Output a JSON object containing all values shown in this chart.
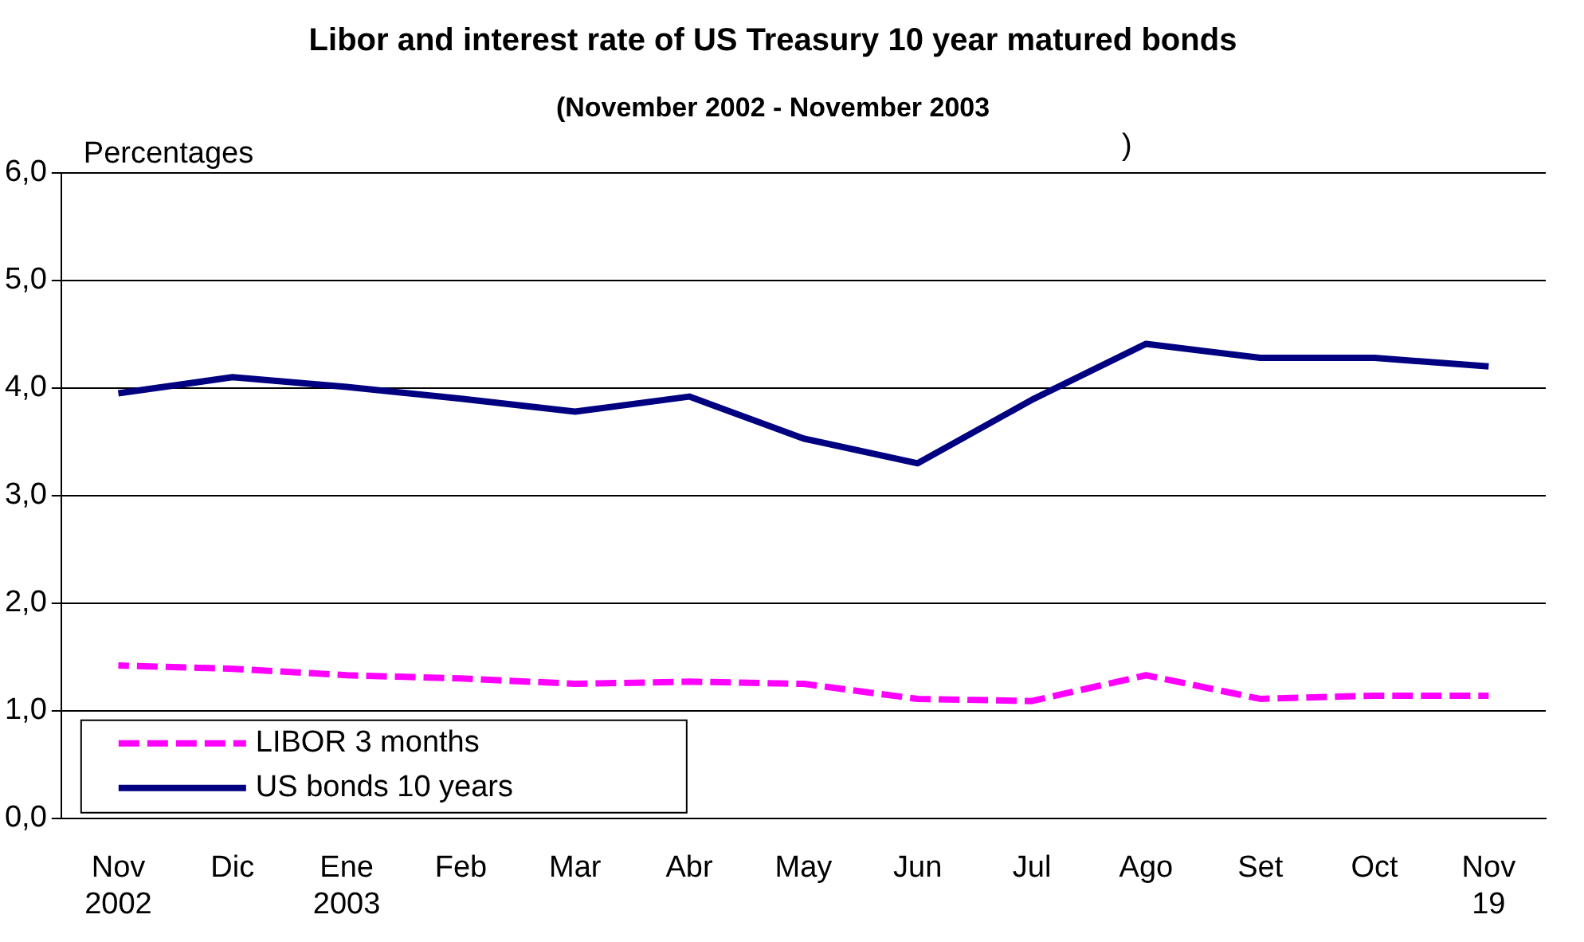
{
  "chart_data": {
    "type": "line",
    "title": "Libor and interest rate of US Treasury 10 year matured bonds",
    "subtitle": "(November 2002 - November 2003",
    "annotations": [
      ")"
    ],
    "ylabel": "Percentages",
    "categories": [
      "Nov\n2002",
      "Dic",
      "Ene\n2003",
      "Feb",
      "Mar",
      "Abr",
      "May",
      "Jun",
      "Jul",
      "Ago",
      "Set",
      "Oct",
      "Nov\n19"
    ],
    "series": [
      {
        "name": "LIBOR 3 months",
        "color": "#ff00ff",
        "line_style": "dashed",
        "values": [
          1.42,
          1.39,
          1.33,
          1.3,
          1.25,
          1.27,
          1.25,
          1.11,
          1.09,
          1.33,
          1.11,
          1.14,
          1.14
        ]
      },
      {
        "name": "US bonds 10 years",
        "color": "#000080",
        "line_style": "solid",
        "values": [
          3.95,
          4.1,
          4.01,
          3.9,
          3.78,
          3.92,
          3.53,
          3.3,
          3.89,
          4.41,
          4.28,
          4.28,
          4.2
        ]
      }
    ],
    "ylim": [
      0,
      6
    ],
    "yticks": [
      {
        "value": 0,
        "label": "0,0"
      },
      {
        "value": 1,
        "label": "1,0"
      },
      {
        "value": 2,
        "label": "2,0"
      },
      {
        "value": 3,
        "label": "3,0"
      },
      {
        "value": 4,
        "label": "4,0"
      },
      {
        "value": 5,
        "label": "5,0"
      },
      {
        "value": 6,
        "label": "6,0"
      }
    ],
    "grid": "y",
    "legend": "bottom left",
    "marker": "none"
  }
}
